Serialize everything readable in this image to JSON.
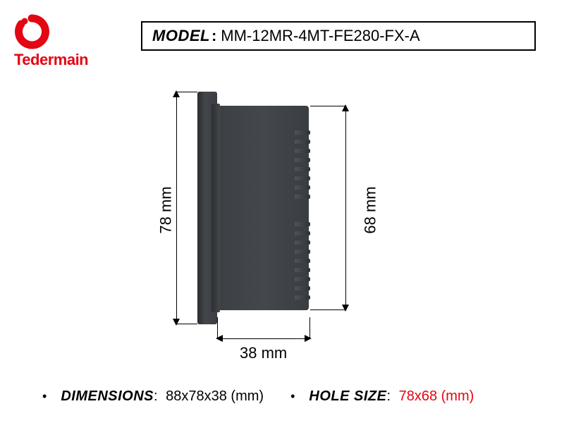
{
  "brand": {
    "name": "Tedermain",
    "color": "#e30613"
  },
  "model": {
    "label": "MODEL",
    "value": "MM-12MR-4MT-FE280-FX-A"
  },
  "dimensions": {
    "height_total_mm": "78 mm",
    "height_body_mm": "68 mm",
    "depth_mm": "38 mm"
  },
  "specs": {
    "dimensions_label": "DIMENSIONS",
    "dimensions_value": "88x78x38 (mm)",
    "hole_label": "HOLE SIZE",
    "hole_value": "78x68 (mm)"
  },
  "styling": {
    "device_dark": "#3c3f43",
    "device_darker": "#2a2c2f",
    "line_color": "#000000",
    "background": "#ffffff",
    "label_fontsize": 22,
    "fin_count": 19
  }
}
